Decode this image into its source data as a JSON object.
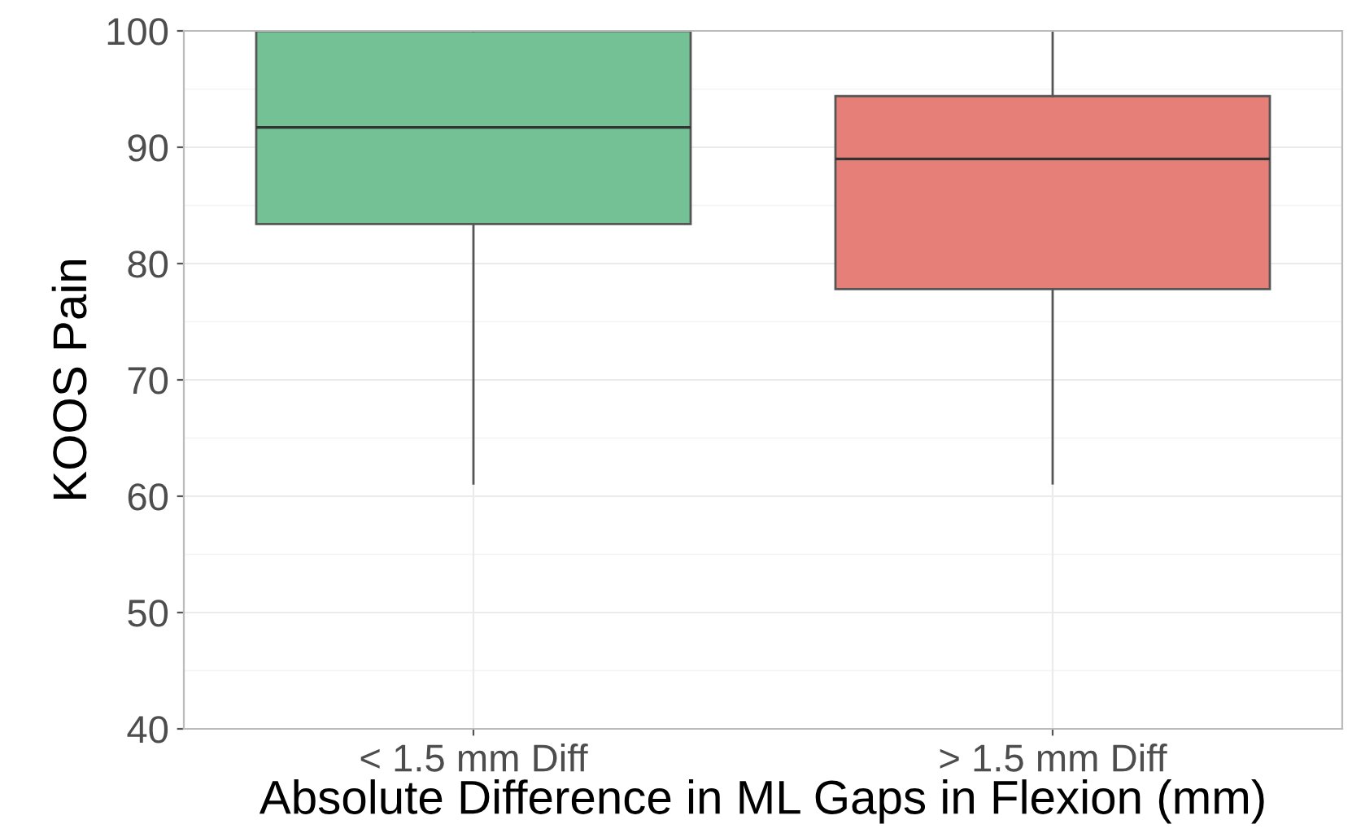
{
  "chart_data": {
    "type": "box",
    "xlabel": "Absolute Difference in ML Gaps in Flexion (mm)",
    "ylabel": "KOOS Pain",
    "categories": [
      "< 1.5 mm Diff",
      "> 1.5 mm Diff"
    ],
    "boxes": [
      {
        "low": 61.1,
        "q1": 83.4,
        "median": 91.7,
        "q3": 100,
        "high": 100
      },
      {
        "low": 61.1,
        "q1": 77.8,
        "median": 89.0,
        "q3": 94.4,
        "high": 100
      }
    ],
    "colors": [
      "#74c195",
      "#e57f78"
    ],
    "ylim": [
      40,
      100
    ],
    "yticks": [
      40,
      50,
      60,
      70,
      80,
      90,
      100
    ],
    "grid": true
  }
}
